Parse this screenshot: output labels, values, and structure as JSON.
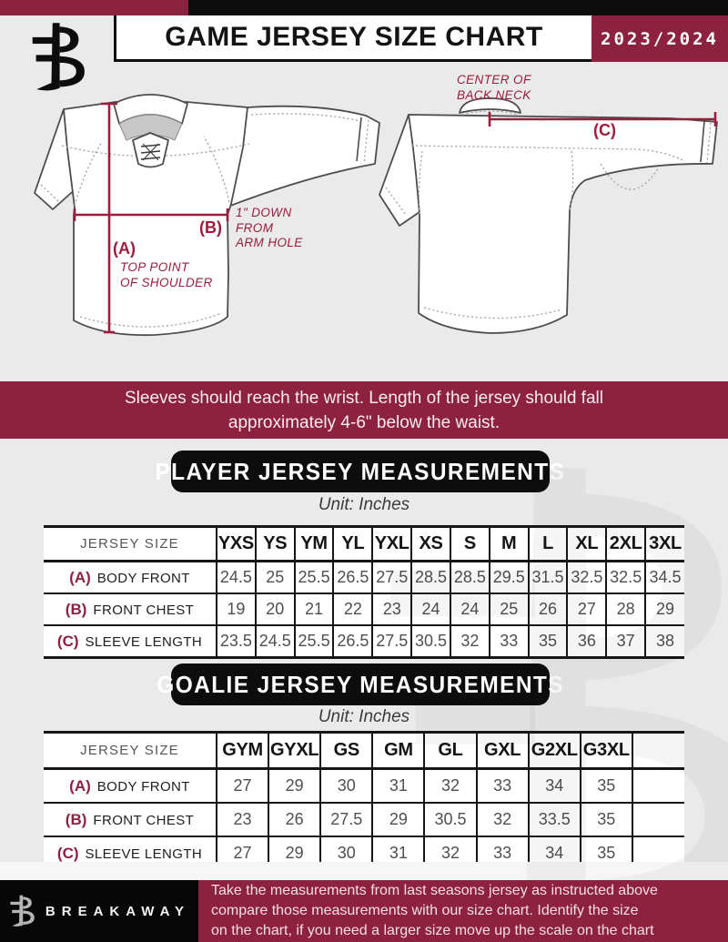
{
  "header": {
    "title": "GAME JERSEY SIZE CHART",
    "season": "2023/2024",
    "logo": "breakaway-b-monogram"
  },
  "diagram": {
    "front": {
      "a_label": "(A)",
      "a_note": "TOP POINT\nOF SHOULDER",
      "b_label": "(B)",
      "b_note": "1\" DOWN\nFROM\nARM HOLE"
    },
    "back": {
      "c_label": "(C)",
      "c_note": "CENTER OF\nBACK NECK"
    }
  },
  "banner": {
    "text": "Sleeves should reach the wrist. Length of the jersey should fall\napproximately 4-6\" below the waist."
  },
  "sections": [
    {
      "id": "player",
      "title": "PLAYER JERSEY MEASUREMENTS",
      "unit": "Unit: Inches",
      "table": {
        "corner": "JERSEY SIZE",
        "columns": [
          "YXS",
          "YS",
          "YM",
          "YL",
          "YXL",
          "XS",
          "S",
          "M",
          "L",
          "XL",
          "2XL",
          "3XL"
        ],
        "rows": [
          {
            "key": "(A)",
            "label": "BODY FRONT",
            "values": [
              "24.5",
              "25",
              "25.5",
              "26.5",
              "27.5",
              "28.5",
              "28.5",
              "29.5",
              "31.5",
              "32.5",
              "32.5",
              "34.5"
            ]
          },
          {
            "key": "(B)",
            "label": "FRONT CHEST",
            "values": [
              "19",
              "20",
              "21",
              "22",
              "23",
              "24",
              "24",
              "25",
              "26",
              "27",
              "28",
              "29"
            ]
          },
          {
            "key": "(C)",
            "label": "SLEEVE LENGTH",
            "values": [
              "23.5",
              "24.5",
              "25.5",
              "26.5",
              "27.5",
              "30.5",
              "32",
              "33",
              "35",
              "36",
              "37",
              "38"
            ]
          }
        ]
      }
    },
    {
      "id": "goalie",
      "title": "GOALIE JERSEY MEASUREMENTS",
      "unit": "Unit: Inches",
      "table": {
        "corner": "JERSEY SIZE",
        "columns": [
          "GYM",
          "GYXL",
          "GS",
          "GM",
          "GL",
          "GXL",
          "G2XL",
          "G3XL",
          ""
        ],
        "rows": [
          {
            "key": "(A)",
            "label": "BODY FRONT",
            "values": [
              "27",
              "29",
              "30",
              "31",
              "32",
              "33",
              "34",
              "35",
              ""
            ]
          },
          {
            "key": "(B)",
            "label": "FRONT CHEST",
            "values": [
              "23",
              "26",
              "27.5",
              "29",
              "30.5",
              "32",
              "33.5",
              "35",
              ""
            ]
          },
          {
            "key": "(C)",
            "label": "SLEEVE LENGTH",
            "values": [
              "27",
              "29",
              "30",
              "31",
              "32",
              "33",
              "34",
              "35",
              ""
            ]
          }
        ]
      }
    }
  ],
  "footer": {
    "brand": "BREAKAWAY",
    "note": "Take the measurements from last seasons jersey as instructed above\ncompare those measurements  with our size chart. Identify the size\non the chart, if you need a larger size move up the scale on the chart"
  },
  "colors": {
    "maroon": "#8d2140",
    "annotation": "#9e1b3c",
    "black": "#0d0d0d"
  }
}
